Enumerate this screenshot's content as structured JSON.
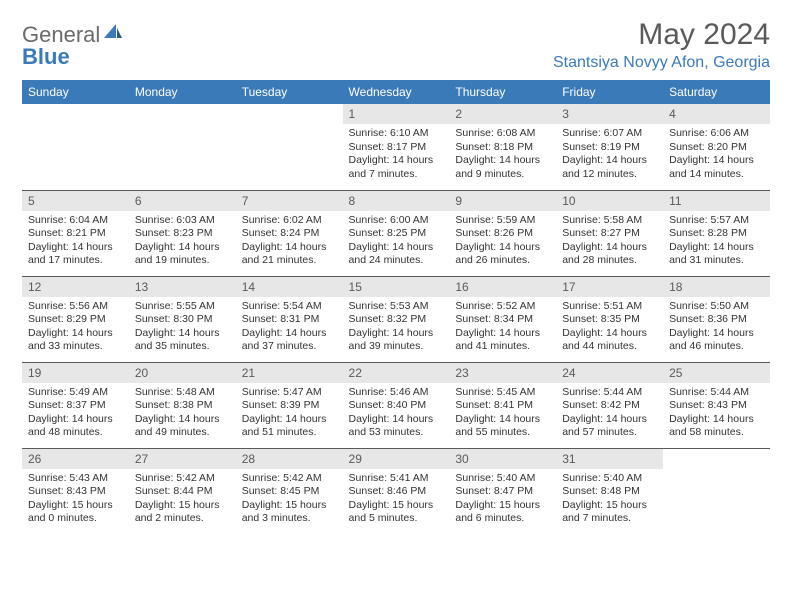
{
  "brand": {
    "word1": "General",
    "word2": "Blue",
    "color": "#3a7ab8"
  },
  "title": "May 2024",
  "location": "Stantsiya Novyy Afon, Georgia",
  "weekdays": [
    "Sunday",
    "Monday",
    "Tuesday",
    "Wednesday",
    "Thursday",
    "Friday",
    "Saturday"
  ],
  "layout": {
    "header_bg": "#3a7ab8",
    "header_fg": "#ffffff",
    "daynum_bg": "#e7e7e7",
    "text_color": "#333333",
    "rule_color": "#5a5a5a",
    "font_size_cell": 10.5,
    "font_size_header": 12
  },
  "weeks": [
    [
      {
        "n": "",
        "sunrise": "",
        "sunset": "",
        "daylight": ""
      },
      {
        "n": "",
        "sunrise": "",
        "sunset": "",
        "daylight": ""
      },
      {
        "n": "",
        "sunrise": "",
        "sunset": "",
        "daylight": ""
      },
      {
        "n": "1",
        "sunrise": "Sunrise: 6:10 AM",
        "sunset": "Sunset: 8:17 PM",
        "daylight": "Daylight: 14 hours and 7 minutes."
      },
      {
        "n": "2",
        "sunrise": "Sunrise: 6:08 AM",
        "sunset": "Sunset: 8:18 PM",
        "daylight": "Daylight: 14 hours and 9 minutes."
      },
      {
        "n": "3",
        "sunrise": "Sunrise: 6:07 AM",
        "sunset": "Sunset: 8:19 PM",
        "daylight": "Daylight: 14 hours and 12 minutes."
      },
      {
        "n": "4",
        "sunrise": "Sunrise: 6:06 AM",
        "sunset": "Sunset: 8:20 PM",
        "daylight": "Daylight: 14 hours and 14 minutes."
      }
    ],
    [
      {
        "n": "5",
        "sunrise": "Sunrise: 6:04 AM",
        "sunset": "Sunset: 8:21 PM",
        "daylight": "Daylight: 14 hours and 17 minutes."
      },
      {
        "n": "6",
        "sunrise": "Sunrise: 6:03 AM",
        "sunset": "Sunset: 8:23 PM",
        "daylight": "Daylight: 14 hours and 19 minutes."
      },
      {
        "n": "7",
        "sunrise": "Sunrise: 6:02 AM",
        "sunset": "Sunset: 8:24 PM",
        "daylight": "Daylight: 14 hours and 21 minutes."
      },
      {
        "n": "8",
        "sunrise": "Sunrise: 6:00 AM",
        "sunset": "Sunset: 8:25 PM",
        "daylight": "Daylight: 14 hours and 24 minutes."
      },
      {
        "n": "9",
        "sunrise": "Sunrise: 5:59 AM",
        "sunset": "Sunset: 8:26 PM",
        "daylight": "Daylight: 14 hours and 26 minutes."
      },
      {
        "n": "10",
        "sunrise": "Sunrise: 5:58 AM",
        "sunset": "Sunset: 8:27 PM",
        "daylight": "Daylight: 14 hours and 28 minutes."
      },
      {
        "n": "11",
        "sunrise": "Sunrise: 5:57 AM",
        "sunset": "Sunset: 8:28 PM",
        "daylight": "Daylight: 14 hours and 31 minutes."
      }
    ],
    [
      {
        "n": "12",
        "sunrise": "Sunrise: 5:56 AM",
        "sunset": "Sunset: 8:29 PM",
        "daylight": "Daylight: 14 hours and 33 minutes."
      },
      {
        "n": "13",
        "sunrise": "Sunrise: 5:55 AM",
        "sunset": "Sunset: 8:30 PM",
        "daylight": "Daylight: 14 hours and 35 minutes."
      },
      {
        "n": "14",
        "sunrise": "Sunrise: 5:54 AM",
        "sunset": "Sunset: 8:31 PM",
        "daylight": "Daylight: 14 hours and 37 minutes."
      },
      {
        "n": "15",
        "sunrise": "Sunrise: 5:53 AM",
        "sunset": "Sunset: 8:32 PM",
        "daylight": "Daylight: 14 hours and 39 minutes."
      },
      {
        "n": "16",
        "sunrise": "Sunrise: 5:52 AM",
        "sunset": "Sunset: 8:34 PM",
        "daylight": "Daylight: 14 hours and 41 minutes."
      },
      {
        "n": "17",
        "sunrise": "Sunrise: 5:51 AM",
        "sunset": "Sunset: 8:35 PM",
        "daylight": "Daylight: 14 hours and 44 minutes."
      },
      {
        "n": "18",
        "sunrise": "Sunrise: 5:50 AM",
        "sunset": "Sunset: 8:36 PM",
        "daylight": "Daylight: 14 hours and 46 minutes."
      }
    ],
    [
      {
        "n": "19",
        "sunrise": "Sunrise: 5:49 AM",
        "sunset": "Sunset: 8:37 PM",
        "daylight": "Daylight: 14 hours and 48 minutes."
      },
      {
        "n": "20",
        "sunrise": "Sunrise: 5:48 AM",
        "sunset": "Sunset: 8:38 PM",
        "daylight": "Daylight: 14 hours and 49 minutes."
      },
      {
        "n": "21",
        "sunrise": "Sunrise: 5:47 AM",
        "sunset": "Sunset: 8:39 PM",
        "daylight": "Daylight: 14 hours and 51 minutes."
      },
      {
        "n": "22",
        "sunrise": "Sunrise: 5:46 AM",
        "sunset": "Sunset: 8:40 PM",
        "daylight": "Daylight: 14 hours and 53 minutes."
      },
      {
        "n": "23",
        "sunrise": "Sunrise: 5:45 AM",
        "sunset": "Sunset: 8:41 PM",
        "daylight": "Daylight: 14 hours and 55 minutes."
      },
      {
        "n": "24",
        "sunrise": "Sunrise: 5:44 AM",
        "sunset": "Sunset: 8:42 PM",
        "daylight": "Daylight: 14 hours and 57 minutes."
      },
      {
        "n": "25",
        "sunrise": "Sunrise: 5:44 AM",
        "sunset": "Sunset: 8:43 PM",
        "daylight": "Daylight: 14 hours and 58 minutes."
      }
    ],
    [
      {
        "n": "26",
        "sunrise": "Sunrise: 5:43 AM",
        "sunset": "Sunset: 8:43 PM",
        "daylight": "Daylight: 15 hours and 0 minutes."
      },
      {
        "n": "27",
        "sunrise": "Sunrise: 5:42 AM",
        "sunset": "Sunset: 8:44 PM",
        "daylight": "Daylight: 15 hours and 2 minutes."
      },
      {
        "n": "28",
        "sunrise": "Sunrise: 5:42 AM",
        "sunset": "Sunset: 8:45 PM",
        "daylight": "Daylight: 15 hours and 3 minutes."
      },
      {
        "n": "29",
        "sunrise": "Sunrise: 5:41 AM",
        "sunset": "Sunset: 8:46 PM",
        "daylight": "Daylight: 15 hours and 5 minutes."
      },
      {
        "n": "30",
        "sunrise": "Sunrise: 5:40 AM",
        "sunset": "Sunset: 8:47 PM",
        "daylight": "Daylight: 15 hours and 6 minutes."
      },
      {
        "n": "31",
        "sunrise": "Sunrise: 5:40 AM",
        "sunset": "Sunset: 8:48 PM",
        "daylight": "Daylight: 15 hours and 7 minutes."
      },
      {
        "n": "",
        "sunrise": "",
        "sunset": "",
        "daylight": ""
      }
    ]
  ]
}
